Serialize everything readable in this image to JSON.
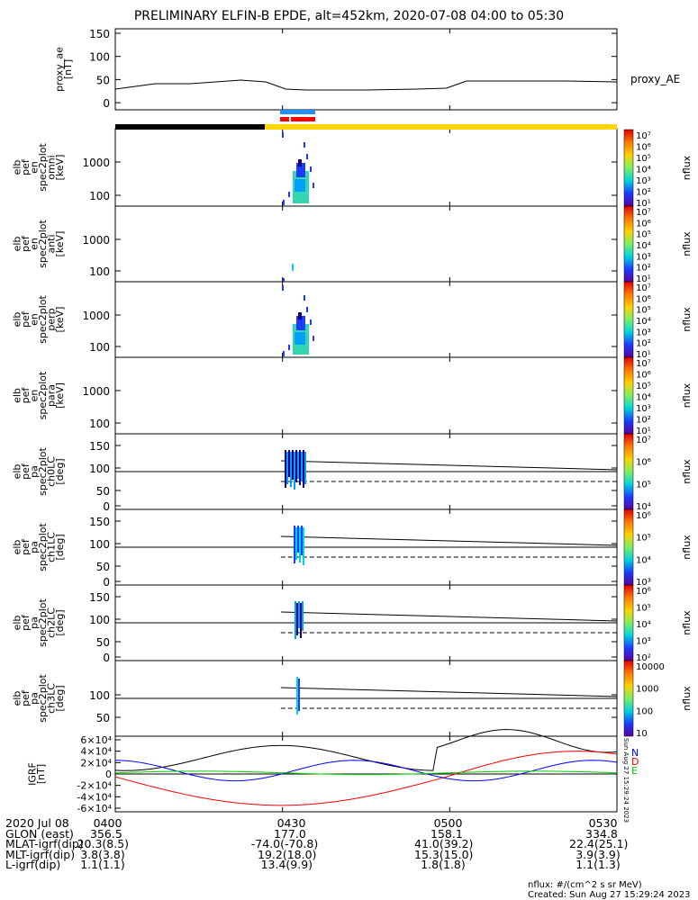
{
  "title": "PRELIMINARY ELFIN-B EPDE, alt=452km, 2020-07-08 04:00 to 05:30",
  "panels": {
    "ae": {
      "ylabel": [
        "proxy_ae",
        "[nT]"
      ],
      "yticks": [
        "150",
        "100",
        "50",
        "0"
      ],
      "legend": "proxy_AE"
    },
    "en_omni": {
      "ylabel": [
        "elb",
        "pef",
        "en",
        "spec2plot",
        "omni",
        "[keV]"
      ],
      "yticks": [
        "1000",
        "100"
      ],
      "zlabel": "nflux"
    },
    "en_anti": {
      "ylabel": [
        "elb",
        "pef",
        "en",
        "spec2plot",
        "anti",
        "[keV]"
      ],
      "yticks": [
        "1000",
        "100"
      ],
      "zlabel": "nflux"
    },
    "en_perp": {
      "ylabel": [
        "elb",
        "pef",
        "en",
        "spec2plot",
        "perp",
        "[keV]"
      ],
      "yticks": [
        "1000",
        "100"
      ],
      "zlabel": "nflux"
    },
    "en_para": {
      "ylabel": [
        "elb",
        "pef",
        "en",
        "spec2plot",
        "para",
        "[keV]"
      ],
      "yticks": [
        "1000",
        "100"
      ],
      "zlabel": "nflux"
    },
    "pa_ch0": {
      "ylabel": [
        "elb",
        "pef",
        "pa",
        "spec2plot",
        "ch0LC",
        "[deg]"
      ],
      "yticks": [
        "150",
        "100",
        "50",
        "0"
      ],
      "zlabel": "nflux"
    },
    "pa_ch1": {
      "ylabel": [
        "elb",
        "pef",
        "pa",
        "spec2plot",
        "ch1LC",
        "[deg]"
      ],
      "yticks": [
        "150",
        "100",
        "50",
        "0"
      ],
      "zlabel": "nflux"
    },
    "pa_ch2": {
      "ylabel": [
        "elb",
        "pef",
        "pa",
        "spec2plot",
        "ch2LC",
        "[deg]"
      ],
      "yticks": [
        "150",
        "100",
        "50",
        "0"
      ],
      "zlabel": "nflux"
    },
    "pa_ch3": {
      "ylabel": [
        "elb",
        "pef",
        "pa",
        "spec2plot",
        "ch3LC",
        "[deg]"
      ],
      "yticks": [
        "100",
        "50"
      ],
      "zlabel": "nflux"
    },
    "igrf": {
      "ylabel": [
        "IGRF",
        "[nT]"
      ],
      "legend": [
        "N",
        "D",
        "E"
      ],
      "stamp": "Sun Aug 27 15:29:24 2023"
    }
  },
  "colorbars": {
    "en": [
      "10⁷",
      "10⁶",
      "10⁵",
      "10⁴",
      "10³",
      "10²",
      "10¹"
    ],
    "pa0": [
      "10⁷",
      "10⁶",
      "10⁵",
      "10⁴"
    ],
    "pa1": [
      "10⁶",
      "10⁵",
      "10⁴",
      "10³"
    ],
    "pa2": [
      "10⁶",
      "10⁵",
      "10⁴",
      "10³",
      "10²"
    ],
    "pa3": [
      "10000",
      "1000",
      "100",
      "10"
    ]
  },
  "footer": {
    "rows": [
      {
        "label": "2020 Jul 08",
        "vals": [
          "0400",
          "0430",
          "0500",
          "0530"
        ]
      },
      {
        "label": "GLON (east)",
        "vals": [
          "356.5",
          "177.0",
          "158.1",
          "334.8"
        ]
      },
      {
        "label": "MLAT-igrf(dip)",
        "vals": [
          "20.3(8.5)",
          "-74.0(-70.8)",
          "41.0(39.2)",
          "22.4(25.1)"
        ]
      },
      {
        "label": "MLT-igrf(dip)",
        "vals": [
          "3.8(3.8)",
          "19.2(18.0)",
          "15.3(15.0)",
          "3.9(3.9)"
        ]
      },
      {
        "label": "L-igrf(dip)",
        "vals": [
          "1.1(1.1)",
          "13.4(9.9)",
          "1.8(1.8)",
          "1.1(1.3)"
        ]
      }
    ],
    "units": "nflux: #/(cm^2 s sr MeV)",
    "created": "Created: Sun Aug 27 15:29:24 2023"
  },
  "chart_data": {
    "type": "line",
    "x": [
      "0400",
      "0430",
      "0500",
      "0530"
    ],
    "series": [
      {
        "name": "proxy_AE",
        "values": [
          35,
          32,
          52,
          50
        ]
      }
    ],
    "ylim": [
      0,
      150
    ],
    "igrf_ylim": [
      -60000,
      60000
    ],
    "igrf_yticks": [
      "6×10⁴",
      "4×10⁴",
      "2×10⁴",
      "0",
      "-2×10⁴",
      "-4×10⁴",
      "-6×10⁴"
    ]
  },
  "colors": {
    "night": "#000000",
    "day": "#ffd700",
    "science": "#1e90ff",
    "igrf_n": "#0000ff",
    "igrf_d": "#ff0000",
    "igrf_e": "#00cc00"
  }
}
